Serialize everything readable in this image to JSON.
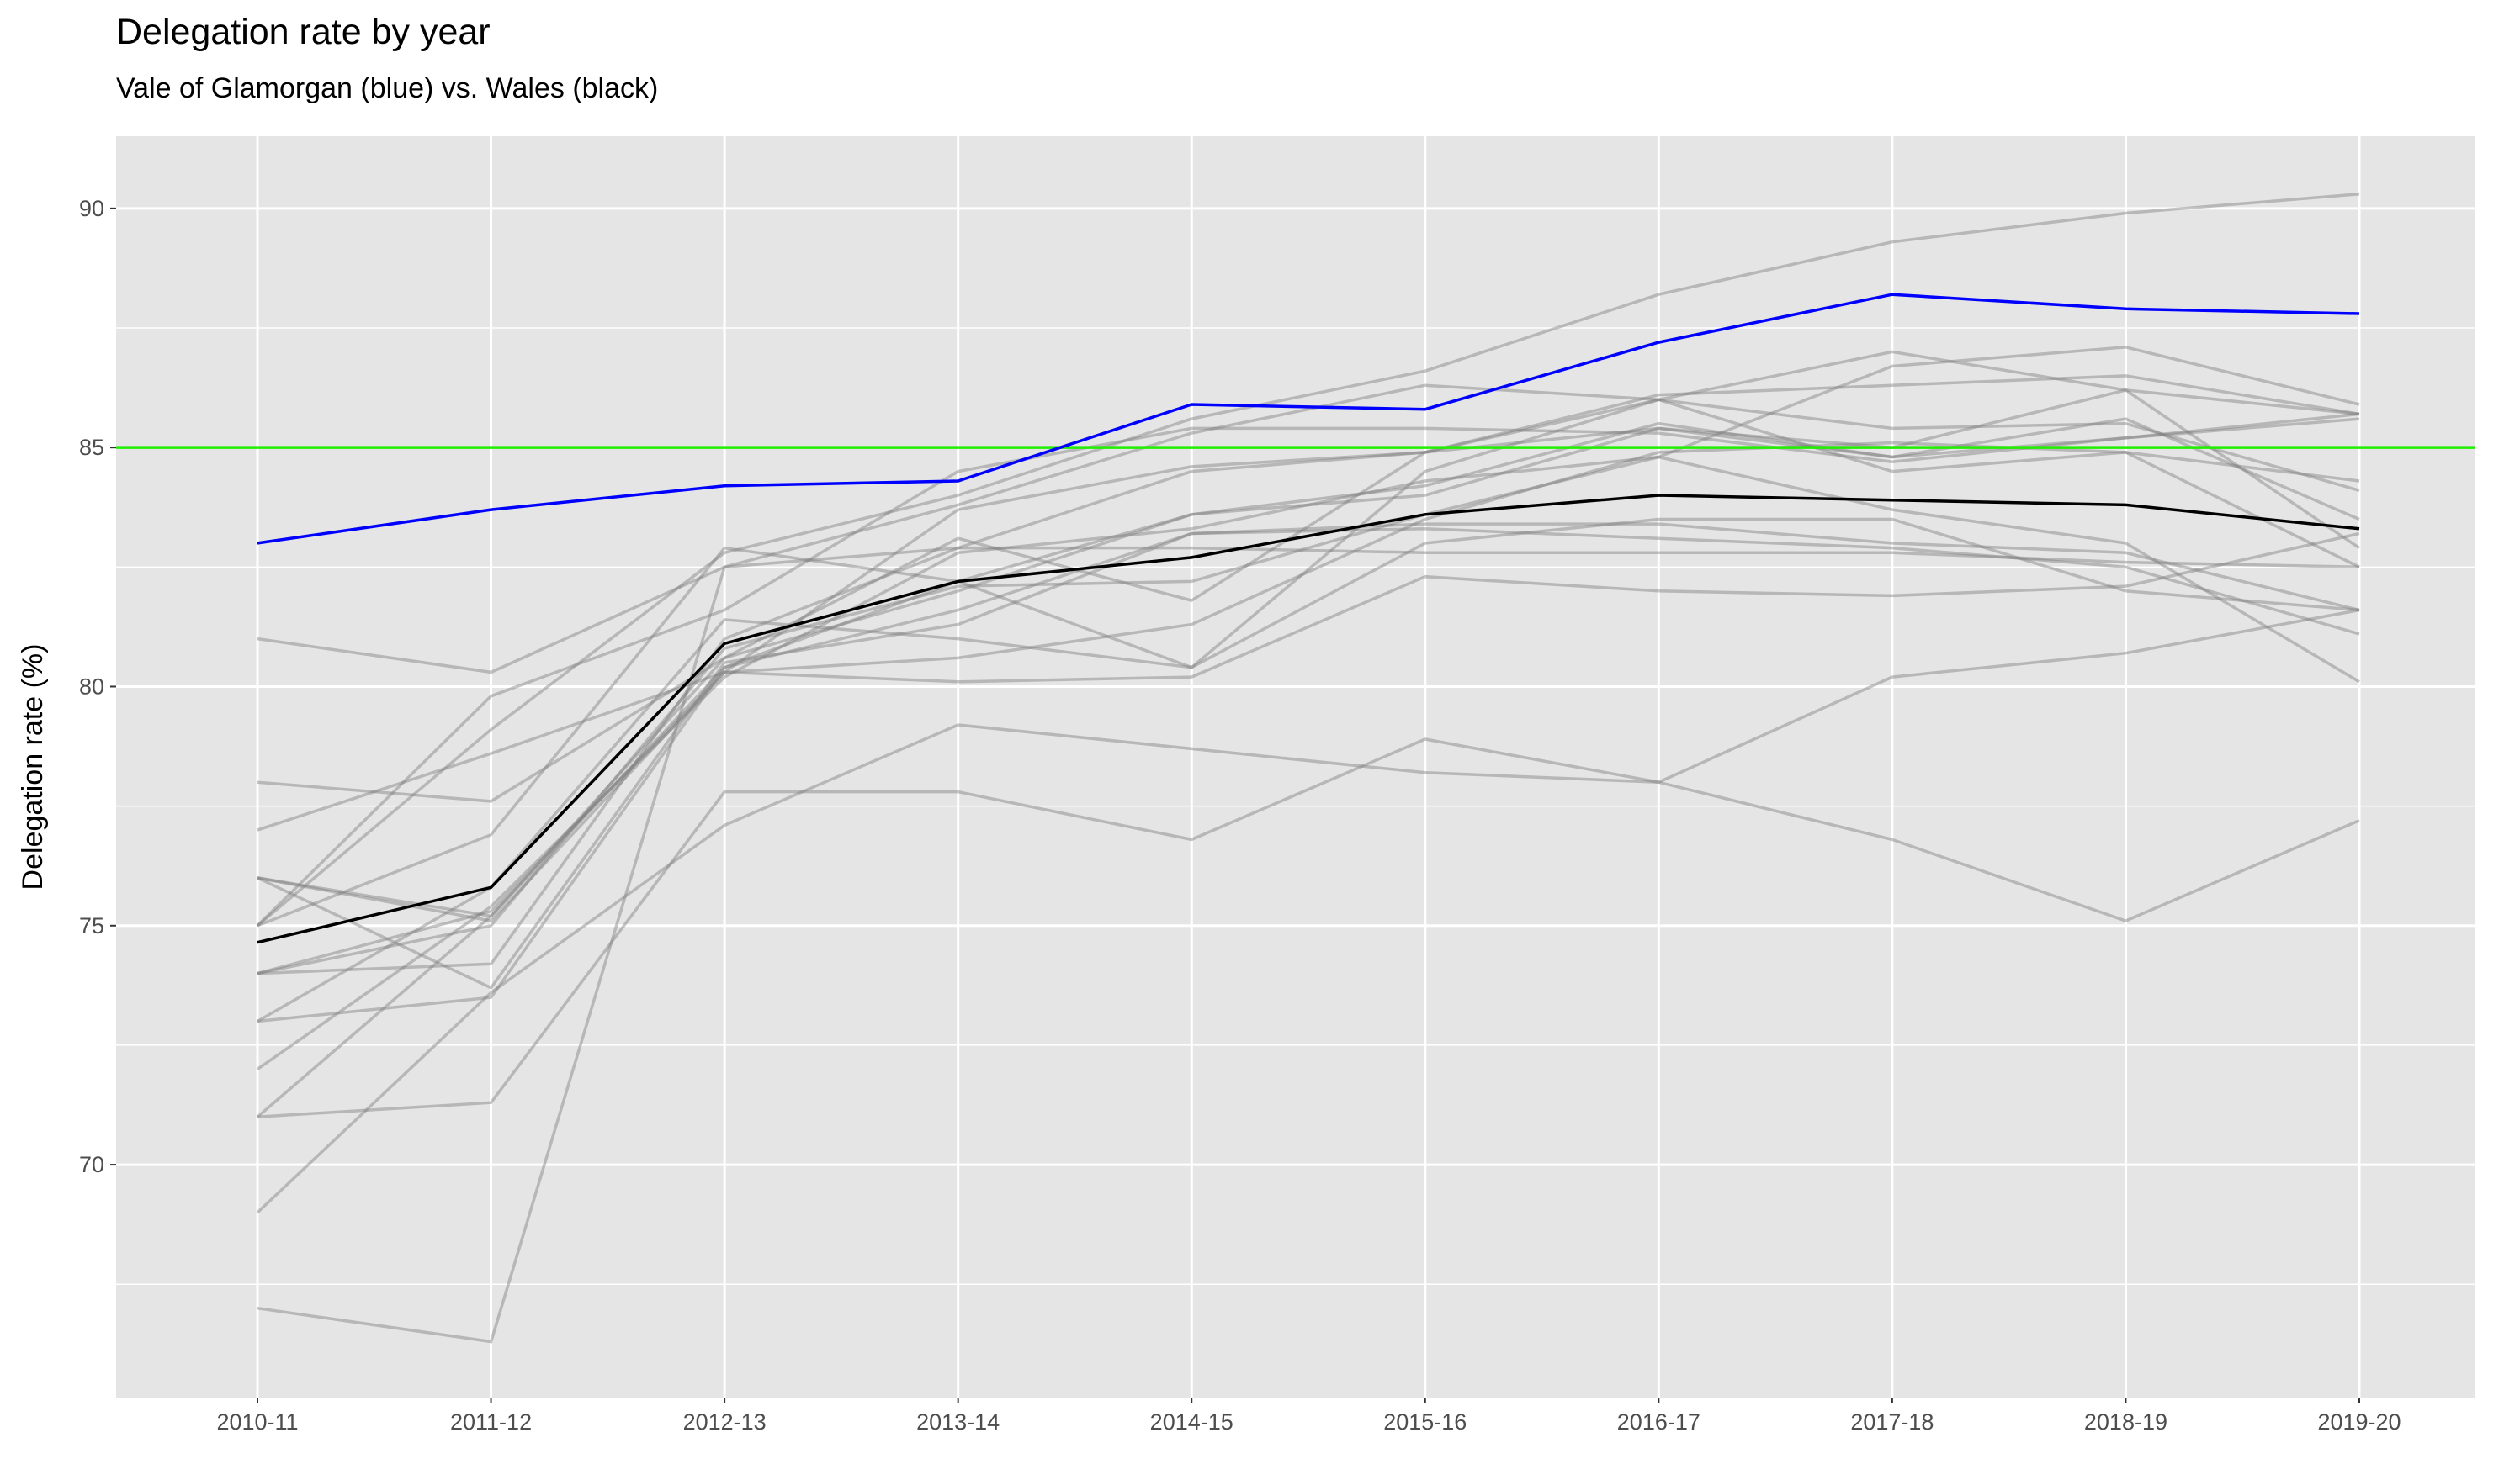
{
  "chart_data": {
    "type": "line",
    "title": "Delegation rate by year",
    "subtitle": "Vale of Glamorgan (blue) vs. Wales (black)",
    "xlabel": "",
    "ylabel": "Delegation rate (%)",
    "x": [
      "2010-11",
      "2011-12",
      "2012-13",
      "2013-14",
      "2014-15",
      "2015-16",
      "2016-17",
      "2017-18",
      "2018-19",
      "2019-20"
    ],
    "ylim": [
      65.13,
      91.51
    ],
    "yticks": [
      70,
      75,
      80,
      85,
      90
    ],
    "grid": true,
    "reference_line": {
      "y": 85,
      "color": "#22ee00"
    },
    "highlight_series": [
      {
        "name": "Vale of Glamorgan",
        "color": "#0000ff",
        "values": [
          83.0,
          83.7,
          84.2,
          84.3,
          85.9,
          85.8,
          87.2,
          88.2,
          87.9,
          87.8
        ]
      },
      {
        "name": "Wales",
        "color": "#000000",
        "values": [
          74.65,
          75.8,
          80.9,
          82.2,
          82.7,
          83.6,
          84.0,
          83.9,
          83.8,
          83.3
        ]
      }
    ],
    "other_series_color": "#7f7f7f",
    "other_series": [
      [
        81,
        80.3,
        82.5,
        82.9,
        82.9,
        82.8,
        82.8,
        82.8,
        82.6,
        82.5
      ],
      [
        78,
        77.6,
        80.6,
        82.0,
        83.6,
        84.2,
        85.5,
        84.8,
        85.6,
        83.5
      ],
      [
        77,
        78.6,
        80.3,
        80.1,
        80.2,
        82.3,
        82.0,
        81.9,
        82.1,
        83.2
      ],
      [
        76,
        75.2,
        80.4,
        81.6,
        83.2,
        83.4,
        83.4,
        83.0,
        82.8,
        81.6
      ],
      [
        76,
        73.7,
        80.5,
        81.3,
        83.2,
        83.3,
        83.1,
        82.9,
        82.5,
        81.1
      ],
      [
        75,
        79.8,
        81.6,
        84.5,
        85.4,
        85.4,
        85.3,
        84.7,
        85.2,
        85.6
      ],
      [
        75,
        76.9,
        82.9,
        82.2,
        80.4,
        84.5,
        86.0,
        84.5,
        84.9,
        82.5
      ],
      [
        74,
        75.3,
        80.3,
        80.6,
        81.3,
        83.5,
        84.9,
        85.1,
        84.9,
        84.3
      ],
      [
        74,
        74.2,
        81.0,
        82.9,
        84.5,
        84.9,
        85.4,
        85.0,
        86.2,
        85.7
      ],
      [
        73,
        73.5,
        80.4,
        82.2,
        83.6,
        84.0,
        85.4,
        84.8,
        85.2,
        85.7
      ],
      [
        72,
        75.4,
        80.2,
        82.8,
        83.3,
        84.3,
        84.8,
        86.7,
        87.1,
        85.9
      ],
      [
        71,
        75.2,
        80.6,
        83.1,
        81.8,
        84.9,
        86.1,
        86.3,
        86.5,
        85.7
      ],
      [
        71,
        71.3,
        77.8,
        77.8,
        76.8,
        78.9,
        78.0,
        80.2,
        80.7,
        81.6
      ],
      [
        69,
        73.6,
        77.1,
        79.2,
        78.7,
        78.2,
        78.0,
        76.8,
        75.1,
        77.2
      ],
      [
        67,
        66.3,
        82.5,
        83.8,
        85.3,
        86.3,
        86.0,
        85.4,
        85.5,
        84.1
      ],
      [
        75,
        79.1,
        82.8,
        84.0,
        85.6,
        86.6,
        88.2,
        89.3,
        89.9,
        90.3
      ],
      [
        73,
        75.8,
        81.4,
        81.0,
        80.4,
        83.0,
        83.5,
        83.5,
        82.0,
        81.6
      ],
      [
        76,
        75.1,
        80.3,
        83.7,
        84.6,
        84.9,
        86.0,
        87.0,
        86.2,
        82.9
      ],
      [
        74,
        75.0,
        80.8,
        82.1,
        82.2,
        83.6,
        84.8,
        83.7,
        83.0,
        80.1
      ]
    ]
  }
}
